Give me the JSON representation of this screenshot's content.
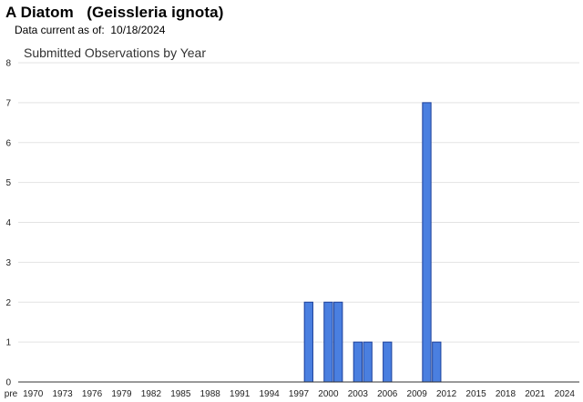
{
  "header": {
    "title": "A Diatom   (Geissleria ignota)",
    "subtitle": "Data current as of:  10/18/2024"
  },
  "colors": {
    "bar_fill": "#4a7fe0",
    "bar_stroke": "#1a3f9a",
    "grid": "#e3e3e3"
  },
  "chart_data": {
    "type": "bar",
    "title": "Submitted Observations by Year",
    "xlabel": "",
    "ylabel": "",
    "ylim": [
      0,
      8
    ],
    "yticks": [
      0,
      1,
      2,
      3,
      4,
      5,
      6,
      7,
      8
    ],
    "grid": true,
    "x_tick_labels": [
      "pre",
      "1970",
      "1973",
      "1976",
      "1979",
      "1982",
      "1985",
      "1988",
      "1991",
      "1994",
      "1997",
      "2000",
      "2003",
      "2006",
      "2009",
      "2012",
      "2015",
      "2018",
      "2021",
      "2024"
    ],
    "categories": [
      "1998",
      "2000",
      "2001",
      "2003",
      "2004",
      "2006",
      "2010",
      "2011"
    ],
    "values": [
      2,
      2,
      2,
      1,
      1,
      1,
      7,
      1
    ]
  }
}
